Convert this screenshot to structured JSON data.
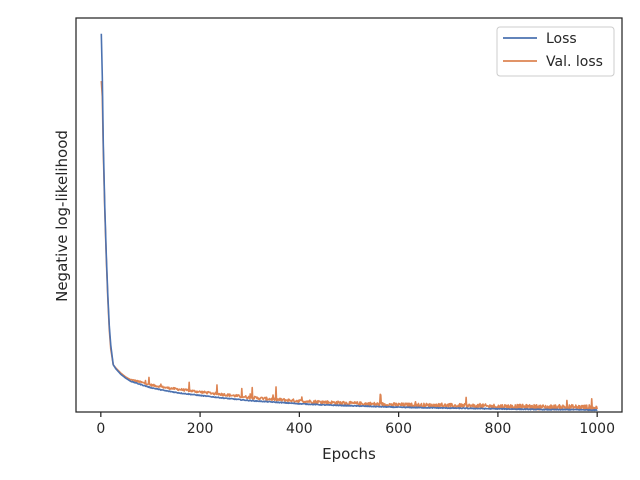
{
  "chart_data": {
    "type": "line",
    "xlabel": "Epochs",
    "ylabel": "Negative log-likelihood",
    "xlim": [
      -50,
      1050
    ],
    "ylim": [
      0,
      1
    ],
    "x_ticks": [
      0,
      200,
      400,
      600,
      800,
      1000
    ],
    "y_ticks_labeled": false,
    "grid": false,
    "legend_position": "top-right",
    "series": [
      {
        "name": "Loss",
        "color": "#4c72b0",
        "x": [
          1,
          3,
          5,
          8,
          11,
          14,
          17,
          20,
          25,
          30,
          40,
          50,
          60,
          80,
          100,
          130,
          160,
          200,
          250,
          300,
          350,
          400,
          450,
          500,
          550,
          600,
          650,
          700,
          750,
          800,
          850,
          900,
          950,
          1000
        ],
        "y": [
          0.96,
          0.85,
          0.68,
          0.52,
          0.4,
          0.3,
          0.22,
          0.17,
          0.12,
          0.11,
          0.096,
          0.086,
          0.078,
          0.07,
          0.062,
          0.054,
          0.048,
          0.042,
          0.035,
          0.029,
          0.025,
          0.021,
          0.018,
          0.016,
          0.014,
          0.012,
          0.011,
          0.01,
          0.009,
          0.008,
          0.007,
          0.006,
          0.006,
          0.005
        ]
      },
      {
        "name": "Val. loss",
        "color": "#dd8452",
        "x": [
          1,
          3,
          5,
          8,
          11,
          14,
          17,
          20,
          25,
          30,
          40,
          50,
          60,
          80,
          100,
          130,
          160,
          200,
          250,
          300,
          350,
          400,
          450,
          500,
          550,
          600,
          650,
          700,
          750,
          800,
          850,
          900,
          950,
          1000
        ],
        "y": [
          0.84,
          0.8,
          0.66,
          0.51,
          0.39,
          0.29,
          0.21,
          0.16,
          0.12,
          0.112,
          0.099,
          0.089,
          0.082,
          0.076,
          0.069,
          0.062,
          0.057,
          0.051,
          0.044,
          0.037,
          0.032,
          0.028,
          0.025,
          0.022,
          0.02,
          0.018,
          0.017,
          0.016,
          0.015,
          0.014,
          0.013,
          0.012,
          0.012,
          0.011
        ]
      }
    ]
  }
}
